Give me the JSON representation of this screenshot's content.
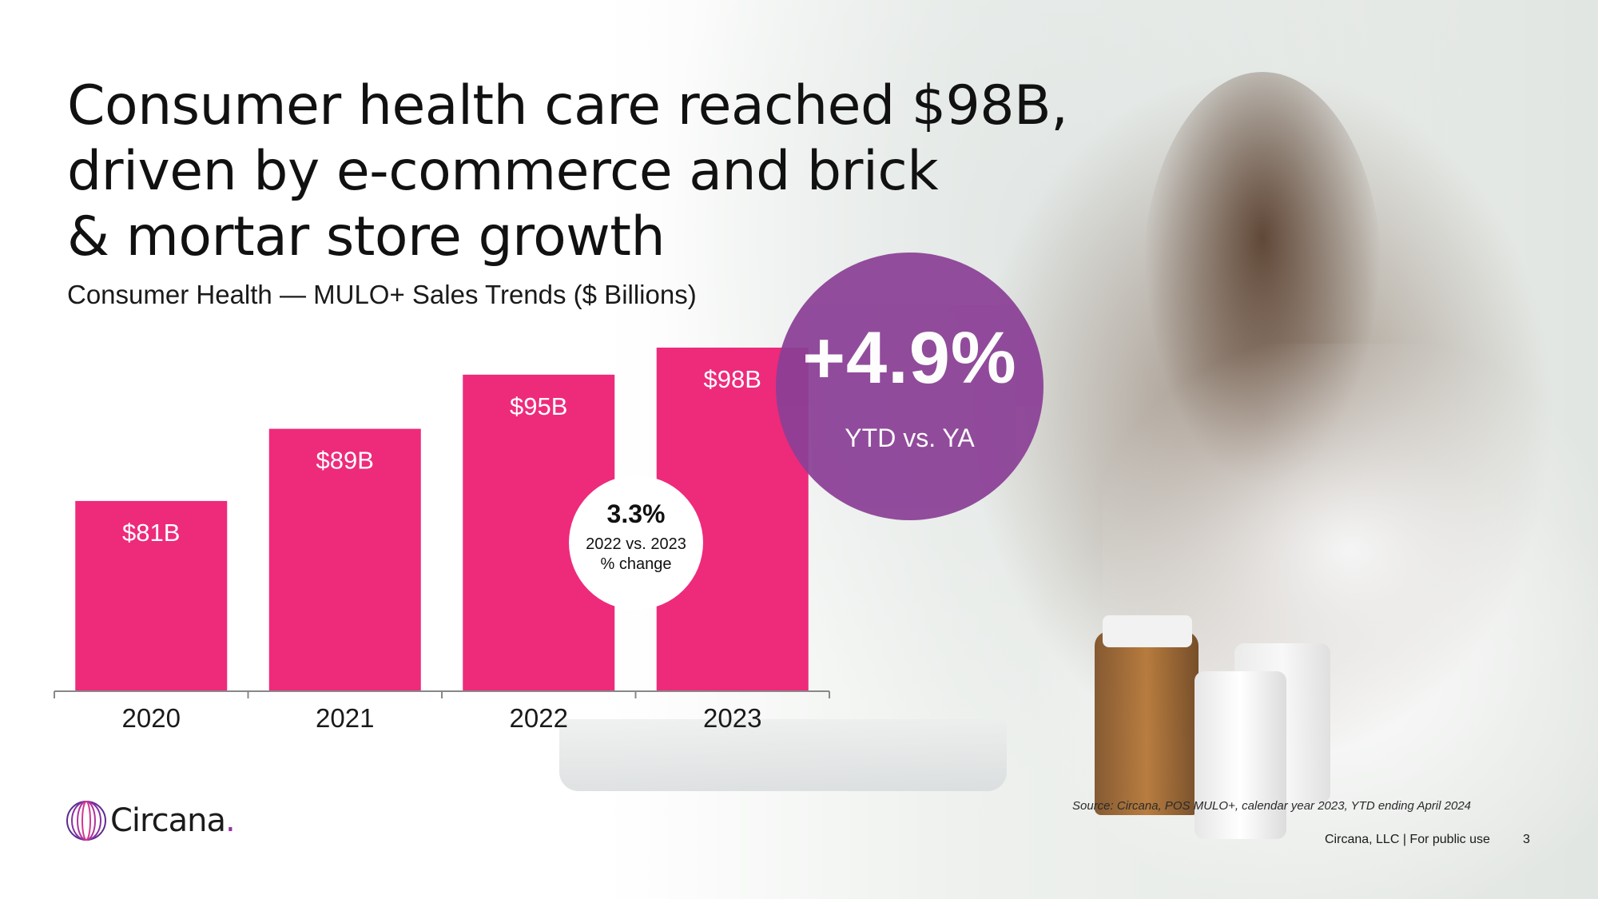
{
  "title_lines": [
    "Consumer health care reached $98B,",
    "driven by e-commerce and brick",
    "& mortar store growth"
  ],
  "subtitle": "Consumer Health — MULO+ Sales Trends ($ Billions)",
  "colors": {
    "bar": "#ee2a7b",
    "bubble": "#8b3f96",
    "axis": "#888888"
  },
  "chart_data": {
    "type": "bar",
    "categories": [
      "2020",
      "2021",
      "2022",
      "2023"
    ],
    "values": [
      81,
      89,
      95,
      98
    ],
    "data_labels": [
      "$81B",
      "$89B",
      "$95B",
      "$98B"
    ],
    "title": "Consumer Health — MULO+ Sales Trends ($ Billions)",
    "xlabel": "",
    "ylabel": "",
    "ylim": [
      60,
      100
    ],
    "grid": false,
    "legend": "none"
  },
  "ytd_callout": {
    "value": "+4.9%",
    "label": "YTD vs. YA"
  },
  "change_callout": {
    "value": "3.3%",
    "line1": "2022 vs. 2023",
    "line2": "% change"
  },
  "logo": {
    "name": "Circana",
    "dot": "."
  },
  "source": "Source: Circana, POS MULO+, calendar year 2023, YTD ending April 2024",
  "footer": "Circana, LLC |  For public use",
  "page_number": "3"
}
